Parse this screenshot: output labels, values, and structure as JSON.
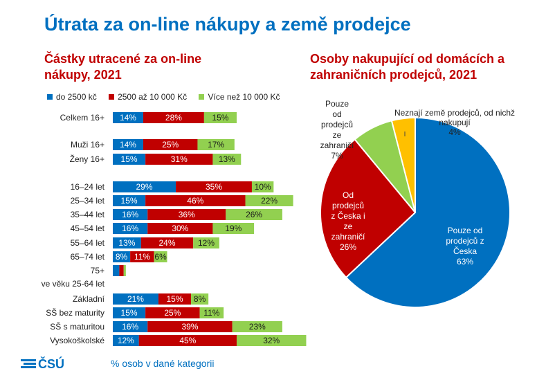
{
  "title": "Útrata za on-line nákupy a země prodejce",
  "footer_note": "% osob v dané kategorii",
  "logo_text": "ČSÚ",
  "colors": {
    "blue": "#0070c0",
    "red": "#c00000",
    "green": "#92d050",
    "yellow": "#ffc000",
    "title_red": "#c00000"
  },
  "chart_data": [
    {
      "type": "bar",
      "orientation": "horizontal",
      "stacked": true,
      "title": "Částky utracené za on-line nákupy, 2021",
      "legend_position": "top",
      "categories": [
        "Celkem 16+",
        "Muži 16+",
        "Ženy 16+",
        "16–24 let",
        "25–34 let",
        "35–44 let",
        "45–54 let",
        "55–64 let",
        "65–74 let",
        "75+",
        "ve věku 25-64 let",
        "Základní",
        "SŠ bez maturity",
        "SŠ s maturitou",
        "Vysokoškolské"
      ],
      "series": [
        {
          "name": "do 2500 kč",
          "values": [
            14,
            14,
            15,
            29,
            15,
            16,
            16,
            13,
            8,
            3,
            null,
            21,
            15,
            16,
            12
          ]
        },
        {
          "name": "2500 až 10 000 Kč",
          "values": [
            28,
            25,
            31,
            35,
            46,
            36,
            30,
            24,
            11,
            2,
            null,
            15,
            25,
            39,
            45
          ]
        },
        {
          "name": "Více než 10 000 Kč",
          "values": [
            15,
            17,
            13,
            10,
            22,
            26,
            19,
            12,
            6,
            1,
            null,
            8,
            11,
            23,
            32
          ]
        }
      ],
      "value_labels": {
        "do 2500 kč": [
          "14%",
          "14%",
          "15%",
          "29%",
          "15%",
          "16%",
          "16%",
          "13%",
          "8%",
          "",
          "",
          "21%",
          "15%",
          "16%",
          "12%"
        ],
        "2500 až 10 000 Kč": [
          "28%",
          "25%",
          "31%",
          "35%",
          "46%",
          "36%",
          "30%",
          "24%",
          "11%",
          "",
          "",
          "15%",
          "25%",
          "39%",
          "45%"
        ],
        "Více než 10 000 Kč": [
          "15%",
          "17%",
          "13%",
          "10%",
          "22%",
          "26%",
          "19%",
          "12%",
          "6%",
          "",
          "",
          "8%",
          "11%",
          "23%",
          "32%"
        ]
      },
      "xlim": [
        0,
        100
      ],
      "grid": false
    },
    {
      "type": "pie",
      "title": "Osoby nakupující od domácích a zahraničních prodejců, 2021",
      "slices": [
        {
          "label": "Pouze od prodejců z Česka",
          "value": 63,
          "value_label": "63%",
          "color": "#0070c0"
        },
        {
          "label": "Od prodejců z Česka i ze zahraničí",
          "value": 26,
          "value_label": "26%",
          "color": "#c00000"
        },
        {
          "label": "Pouze od prodejců ze zahraničí",
          "value": 7,
          "value_label": "7%",
          "color": "#92d050"
        },
        {
          "label": "Neznají země prodejců, od nichž nakupují",
          "value": 4,
          "value_label": "4%",
          "color": "#ffc000"
        }
      ]
    }
  ]
}
